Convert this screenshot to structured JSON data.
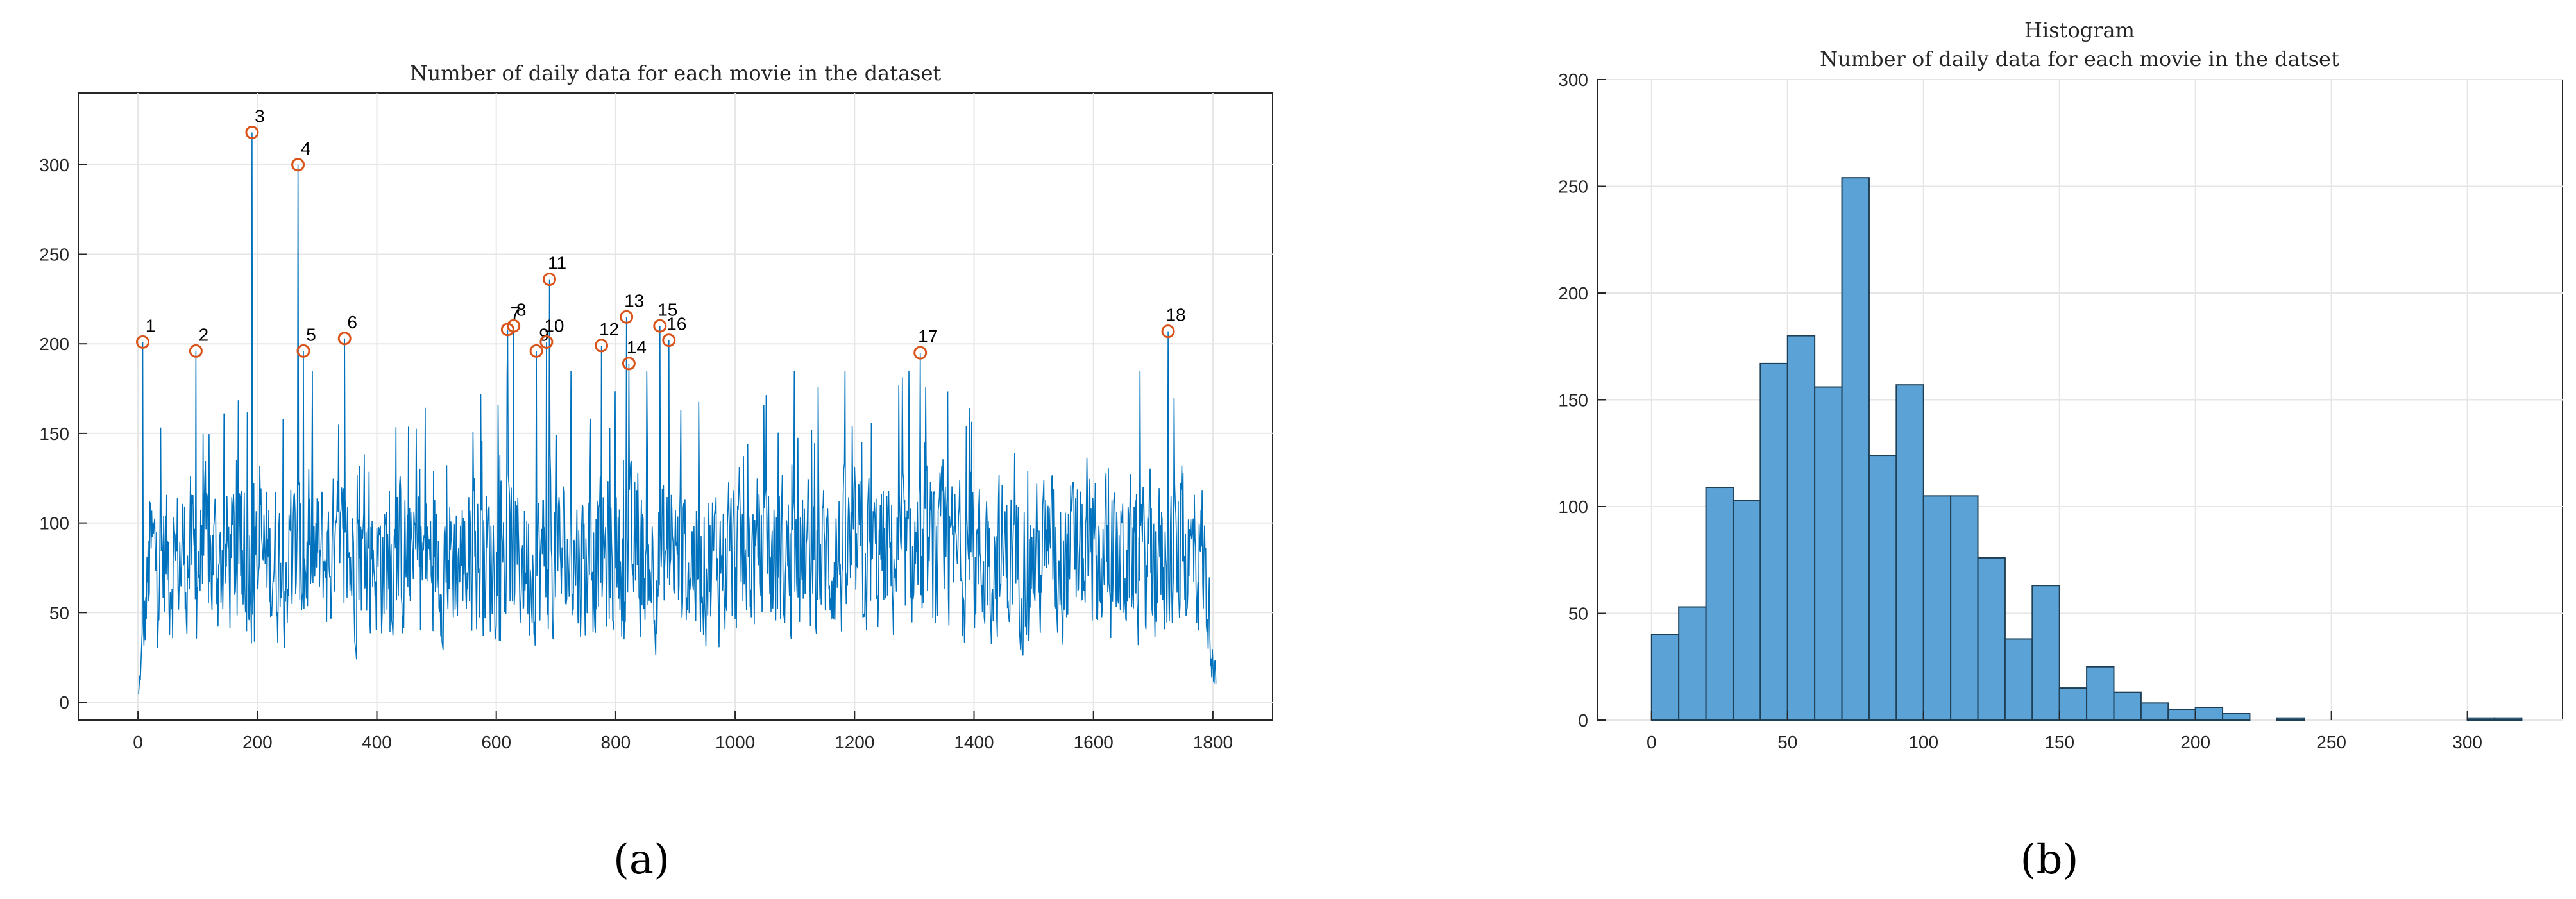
{
  "chart_data": [
    {
      "type": "line",
      "title": "Number of daily data for each movie in the dataset",
      "caption": "(a)",
      "xlim": [
        -100,
        1900
      ],
      "ylim": [
        -10,
        340
      ],
      "xticks": [
        0,
        200,
        400,
        600,
        800,
        1000,
        1200,
        1400,
        1600,
        1800
      ],
      "yticks": [
        0,
        50,
        100,
        150,
        200,
        250,
        300
      ],
      "grid": true,
      "series": [
        {
          "color": "#0072bd",
          "x_range": [
            1,
            1805
          ],
          "typical_range": [
            0,
            150
          ],
          "mean": 80
        }
      ],
      "peaks": [
        {
          "label": "1",
          "x": 8,
          "y": 201
        },
        {
          "label": "2",
          "x": 97,
          "y": 196
        },
        {
          "label": "3",
          "x": 191,
          "y": 318
        },
        {
          "label": "4",
          "x": 268,
          "y": 300
        },
        {
          "label": "5",
          "x": 277,
          "y": 196
        },
        {
          "label": "6",
          "x": 346,
          "y": 203
        },
        {
          "label": "7",
          "x": 619,
          "y": 208
        },
        {
          "label": "8",
          "x": 629,
          "y": 210
        },
        {
          "label": "9",
          "x": 667,
          "y": 196
        },
        {
          "label": "10",
          "x": 684,
          "y": 201
        },
        {
          "label": "11",
          "x": 689,
          "y": 236
        },
        {
          "label": "12",
          "x": 776,
          "y": 199
        },
        {
          "label": "13",
          "x": 818,
          "y": 215
        },
        {
          "label": "14",
          "x": 822,
          "y": 189
        },
        {
          "label": "15",
          "x": 874,
          "y": 210
        },
        {
          "label": "16",
          "x": 889,
          "y": 202
        },
        {
          "label": "17",
          "x": 1310,
          "y": 195
        },
        {
          "label": "18",
          "x": 1725,
          "y": 207
        }
      ],
      "marker_color": "#d95319"
    },
    {
      "type": "bar",
      "title": "Histogram",
      "subtitle": "Number of daily data for each movie in the datset",
      "caption": "(b)",
      "bin_width": 10,
      "bin_start": 0,
      "values": [
        40,
        53,
        109,
        103,
        167,
        180,
        156,
        254,
        124,
        157,
        105,
        105,
        76,
        38,
        63,
        15,
        25,
        13,
        8,
        5,
        6,
        3,
        0,
        1,
        0,
        0,
        0,
        0,
        0,
        0,
        1,
        1
      ],
      "xlim": [
        -20,
        335
      ],
      "ylim": [
        0,
        300
      ],
      "xticks": [
        0,
        50,
        100,
        150,
        200,
        250,
        300
      ],
      "yticks": [
        0,
        50,
        100,
        150,
        200,
        250,
        300
      ],
      "grid": true,
      "bar_color": "#5ba3d6",
      "edge_color": "#1f3f55"
    }
  ]
}
